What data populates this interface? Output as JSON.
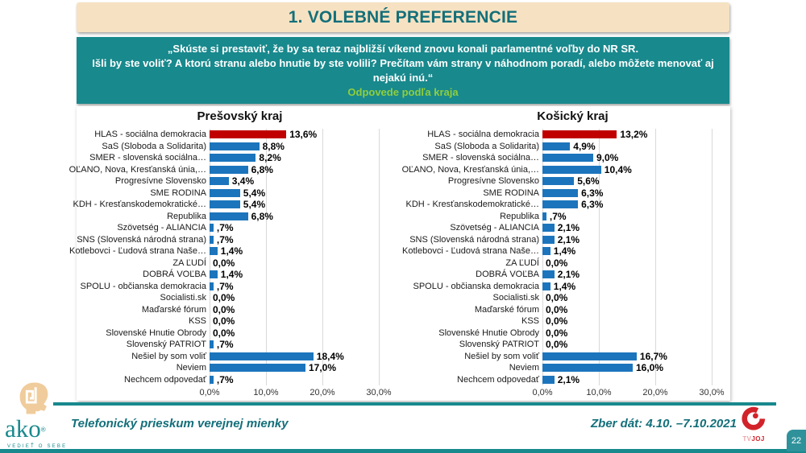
{
  "slide": {
    "title": "1. VOLEBNÉ PREFERENCIE",
    "page_number": "22"
  },
  "question": {
    "lines": [
      "„Skúste si prestaviť, že by sa teraz najbližší víkend znovu konali parlamentné voľby do NR SR.",
      "Išli by ste voliť? A ktorú stranu alebo hnutie by ste volili? Prečítam vám strany v náhodnom poradí, alebo môžete menovať aj",
      "nejakú inú.“"
    ],
    "subtitle": "Odpovede podľa kraja"
  },
  "chart_data": [
    {
      "type": "bar",
      "orientation": "horizontal",
      "title": "Prešovský kraj",
      "categories": [
        "HLAS - sociálna demokracia",
        "SaS (Sloboda a Solidarita)",
        "SMER - slovenská sociálna…",
        "OĽANO, Nova, Kresťanská únia,…",
        "Progresívne Slovensko",
        "SME RODINA",
        "KDH - Kresťanskodemokratické…",
        "Republika",
        "Szövetség - ALIANCIA",
        "SNS (Slovenská národná strana)",
        "Kotlebovci - Ľudová strana Naše…",
        "ZA ĽUDÍ",
        "DOBRÁ VOĽBA",
        "SPOLU - občianska demokracia",
        "Socialisti.sk",
        "Maďarské fórum",
        "KSS",
        "Slovenské Hnutie Obrody",
        "Slovenský PATRIOT",
        "Nešiel by som voliť",
        "Neviem",
        "Nechcem odpovedať"
      ],
      "values": [
        13.6,
        8.8,
        8.2,
        6.8,
        3.4,
        5.4,
        5.4,
        6.8,
        0.7,
        0.7,
        1.4,
        0.0,
        1.4,
        0.7,
        0.0,
        0.0,
        0.0,
        0.0,
        0.7,
        18.4,
        17.0,
        0.7
      ],
      "value_labels": [
        "13,6%",
        "8,8%",
        "8,2%",
        "6,8%",
        "3,4%",
        "5,4%",
        "5,4%",
        "6,8%",
        ",7%",
        ",7%",
        "1,4%",
        "0,0%",
        "1,4%",
        ",7%",
        "0,0%",
        "0,0%",
        "0,0%",
        "0,0%",
        ",7%",
        "18,4%",
        "17,0%",
        ",7%"
      ],
      "x_ticks": [
        "0,0%",
        "10,0%",
        "20,0%",
        "30,0%"
      ],
      "x_tick_values": [
        0,
        10,
        20,
        30
      ],
      "xlim": [
        0,
        30
      ],
      "xlabel": "",
      "ylabel": "",
      "grid": true,
      "legend": false,
      "bar_color": "#1c75bc",
      "highlight_index": 0,
      "highlight_color": "#c00000"
    },
    {
      "type": "bar",
      "orientation": "horizontal",
      "title": "Košický kraj",
      "categories": [
        "HLAS - sociálna demokracia",
        "SaS (Sloboda a Solidarita)",
        "SMER - slovenská sociálna…",
        "OĽANO, Nova, Kresťanská únia,…",
        "Progresívne Slovensko",
        "SME RODINA",
        "KDH - Kresťanskodemokratické…",
        "Republika",
        "Szövetség - ALIANCIA",
        "SNS (Slovenská národná strana)",
        "Kotlebovci - Ľudová strana Naše…",
        "ZA ĽUDÍ",
        "DOBRÁ VOĽBA",
        "SPOLU - občianska demokracia",
        "Socialisti.sk",
        "Maďarské fórum",
        "KSS",
        "Slovenské Hnutie Obrody",
        "Slovenský PATRIOT",
        "Nešiel by som voliť",
        "Neviem",
        "Nechcem odpovedať"
      ],
      "values": [
        13.2,
        4.9,
        9.0,
        10.4,
        5.6,
        6.3,
        6.3,
        0.7,
        2.1,
        2.1,
        1.4,
        0.0,
        2.1,
        1.4,
        0.0,
        0.0,
        0.0,
        0.0,
        0.0,
        16.7,
        16.0,
        2.1
      ],
      "value_labels": [
        "13,2%",
        "4,9%",
        "9,0%",
        "10,4%",
        "5,6%",
        "6,3%",
        "6,3%",
        ",7%",
        "2,1%",
        "2,1%",
        "1,4%",
        "0,0%",
        "2,1%",
        "1,4%",
        "0,0%",
        "0,0%",
        "0,0%",
        "0,0%",
        "0,0%",
        "16,7%",
        "16,0%",
        "2,1%"
      ],
      "x_ticks": [
        "0,0%",
        "10,0%",
        "20,0%",
        "30,0%"
      ],
      "x_tick_values": [
        0,
        10,
        20,
        30
      ],
      "xlim": [
        0,
        30
      ],
      "xlabel": "",
      "ylabel": "",
      "grid": true,
      "legend": false,
      "bar_color": "#1c75bc",
      "highlight_index": 0,
      "highlight_color": "#c00000"
    }
  ],
  "footer": {
    "logo_text": "ako",
    "logo_reg": "®",
    "logo_tagline": "VEDIEŤ O SEBE",
    "survey_text": "Telefonický prieskum verejnej mienky",
    "date_text": "Zber dát: 4.10. –7.10.2021",
    "tv_logo_prefix": "TV",
    "tv_logo_suffix": "JOJ"
  },
  "colors": {
    "teal": "#18898d",
    "teal_dark_text": "#136f7a",
    "beige": "#f6e2c2",
    "green_subtitle": "#8fce3c",
    "bar_blue": "#1c75bc",
    "bar_red": "#c00000",
    "gridline": "#d9d9d9",
    "joj_red": "#d2232a",
    "badge_teal": "#2f929b"
  }
}
